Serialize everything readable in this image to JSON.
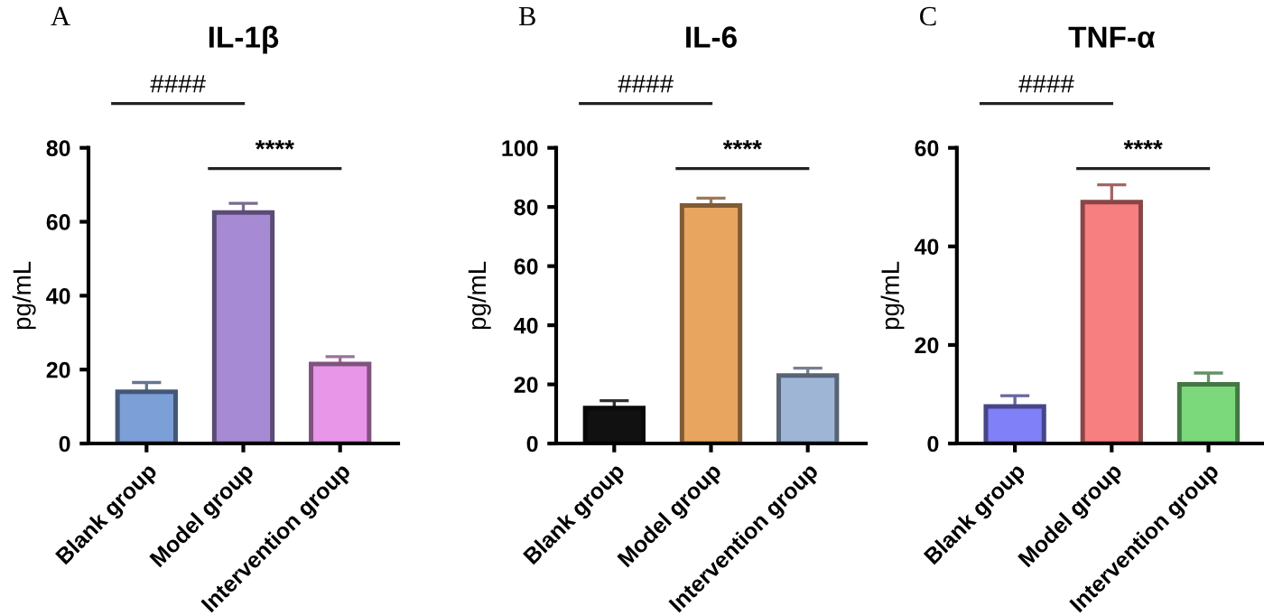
{
  "chart_data": [
    {
      "type": "bar",
      "title": "IL-1β",
      "ylabel": "pg/mL",
      "categories": [
        "Blank group",
        "Model group",
        "Intervention group"
      ],
      "values": [
        14,
        62.5,
        21.5
      ],
      "colors": [
        "#7b9fd6",
        "#a68bd4",
        "#e896e8"
      ],
      "errors": [
        [
          14,
          16.5
        ],
        [
          62.5,
          65
        ],
        [
          21.5,
          23.5
        ]
      ],
      "ylim": [
        0,
        80
      ],
      "yticks": [
        0,
        20,
        40,
        60,
        80
      ],
      "annotations": [
        "A",
        "####",
        "****"
      ]
    },
    {
      "type": "bar",
      "title": "IL-6",
      "ylabel": "pg/mL",
      "categories": [
        "Blank group",
        "Model group",
        "Intervention group"
      ],
      "values": [
        12,
        80.5,
        23
      ],
      "colors": [
        "#111111",
        "#e8a55f",
        "#9fb5d6"
      ],
      "errors": [
        [
          12,
          14.5
        ],
        [
          80.5,
          83
        ],
        [
          23,
          25.5
        ]
      ],
      "ylim": [
        0,
        100
      ],
      "yticks": [
        0,
        20,
        40,
        60,
        80,
        100
      ],
      "annotations": [
        "B",
        "####",
        "****"
      ]
    },
    {
      "type": "bar",
      "title": "TNF-α",
      "ylabel": "pg/mL",
      "categories": [
        "Blank group",
        "Model group",
        "Intervention group"
      ],
      "values": [
        7.5,
        49,
        12
      ],
      "colors": [
        "#8080f8",
        "#f87f7f",
        "#7bd87b"
      ],
      "errors": [
        [
          7.5,
          9.7
        ],
        [
          49,
          52.5
        ],
        [
          12,
          14.3
        ]
      ],
      "ylim": [
        0,
        60
      ],
      "yticks": [
        0,
        20,
        40,
        60
      ],
      "annotations": [
        "C",
        "####",
        "****"
      ]
    }
  ]
}
